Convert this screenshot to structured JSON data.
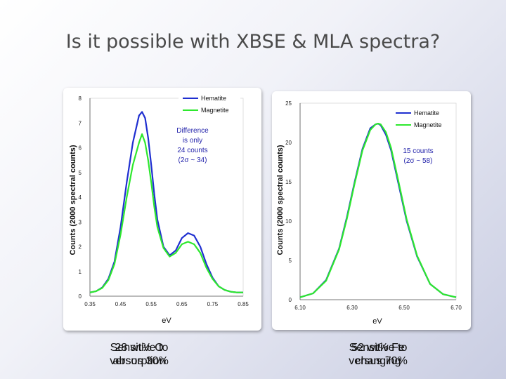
{
  "title": "Is it possible with XBSE & MLA spectra?",
  "chart_data": [
    {
      "type": "line",
      "xlabel": "eV",
      "ylabel": "Counts (2000 spectral counts)",
      "xlim": [
        0.35,
        0.85
      ],
      "ylim": [
        0,
        8
      ],
      "xticks": [
        "0.35",
        "0.45",
        "0.55",
        "0.65",
        "0.75",
        "0.85"
      ],
      "yticks": [
        "0",
        "1",
        "2",
        "3",
        "4",
        "5",
        "6",
        "7",
        "8"
      ],
      "legend_position": "top-right",
      "series": [
        {
          "name": "Hematite",
          "color": "#1f2fd0",
          "x": [
            0.35,
            0.37,
            0.39,
            0.41,
            0.43,
            0.45,
            0.47,
            0.49,
            0.51,
            0.52,
            0.53,
            0.54,
            0.55,
            0.56,
            0.57,
            0.59,
            0.61,
            0.63,
            0.65,
            0.67,
            0.69,
            0.71,
            0.73,
            0.75,
            0.77,
            0.79,
            0.81,
            0.83,
            0.85
          ],
          "y": [
            0.15,
            0.2,
            0.35,
            0.7,
            1.4,
            2.8,
            4.6,
            6.2,
            7.3,
            7.45,
            7.2,
            6.4,
            5.3,
            4.1,
            3.1,
            2.0,
            1.65,
            1.85,
            2.35,
            2.55,
            2.45,
            2.0,
            1.3,
            0.75,
            0.4,
            0.25,
            0.18,
            0.15,
            0.15
          ]
        },
        {
          "name": "Magnetite",
          "color": "#2ee82e",
          "x": [
            0.35,
            0.37,
            0.39,
            0.41,
            0.43,
            0.45,
            0.47,
            0.49,
            0.51,
            0.52,
            0.53,
            0.54,
            0.55,
            0.56,
            0.57,
            0.59,
            0.61,
            0.63,
            0.65,
            0.67,
            0.69,
            0.71,
            0.73,
            0.75,
            0.77,
            0.79,
            0.81,
            0.83,
            0.85
          ],
          "y": [
            0.15,
            0.2,
            0.33,
            0.65,
            1.3,
            2.5,
            4.0,
            5.3,
            6.2,
            6.55,
            6.2,
            5.5,
            4.6,
            3.6,
            2.8,
            1.95,
            1.6,
            1.75,
            2.1,
            2.2,
            2.1,
            1.75,
            1.15,
            0.7,
            0.4,
            0.25,
            0.18,
            0.15,
            0.15
          ]
        }
      ],
      "annotation": [
        "Difference",
        "is only",
        "24 counts",
        "(2σ ~ 34)"
      ]
    },
    {
      "type": "line",
      "xlabel": "eV",
      "ylabel": "Counts (2000 spectral counts)",
      "xlim": [
        6.1,
        6.7
      ],
      "ylim": [
        0,
        25
      ],
      "xticks": [
        "6.10",
        "6.30",
        "6.50",
        "6.70"
      ],
      "yticks": [
        "0",
        "5",
        "10",
        "15",
        "20",
        "25"
      ],
      "legend_position": "top-right",
      "series": [
        {
          "name": "Hematite",
          "color": "#1f2fd0",
          "x": [
            6.1,
            6.15,
            6.2,
            6.25,
            6.28,
            6.31,
            6.34,
            6.37,
            6.39,
            6.4,
            6.41,
            6.43,
            6.45,
            6.48,
            6.51,
            6.55,
            6.6,
            6.65,
            6.7
          ],
          "y": [
            0.3,
            0.8,
            2.5,
            6.5,
            10.5,
            15.0,
            19.2,
            21.8,
            22.3,
            22.4,
            22.2,
            21.0,
            19.0,
            14.5,
            10.0,
            5.5,
            2.0,
            0.7,
            0.3
          ]
        },
        {
          "name": "Magnetite",
          "color": "#2ee82e",
          "x": [
            6.1,
            6.15,
            6.2,
            6.25,
            6.28,
            6.31,
            6.34,
            6.37,
            6.39,
            6.4,
            6.41,
            6.43,
            6.45,
            6.48,
            6.51,
            6.55,
            6.6,
            6.65,
            6.7
          ],
          "y": [
            0.3,
            0.8,
            2.4,
            6.4,
            10.3,
            14.8,
            19.0,
            21.6,
            22.3,
            22.4,
            22.3,
            21.3,
            19.3,
            14.8,
            10.2,
            5.6,
            2.0,
            0.7,
            0.3
          ]
        }
      ],
      "annotation": [
        "15 counts",
        "(2σ ~ 58)"
      ]
    }
  ],
  "captions": {
    "left": {
      "line1_a": "Sensitive to",
      "line1_b": "28 wt% O",
      "line2_a": "absorption",
      "line2_b": "versus 30%"
    },
    "right": {
      "line1_a": "Sensitive to",
      "line1_b": "52 wt% Fe",
      "line2_a": "changing",
      "line2_b": "versus 70%"
    }
  }
}
